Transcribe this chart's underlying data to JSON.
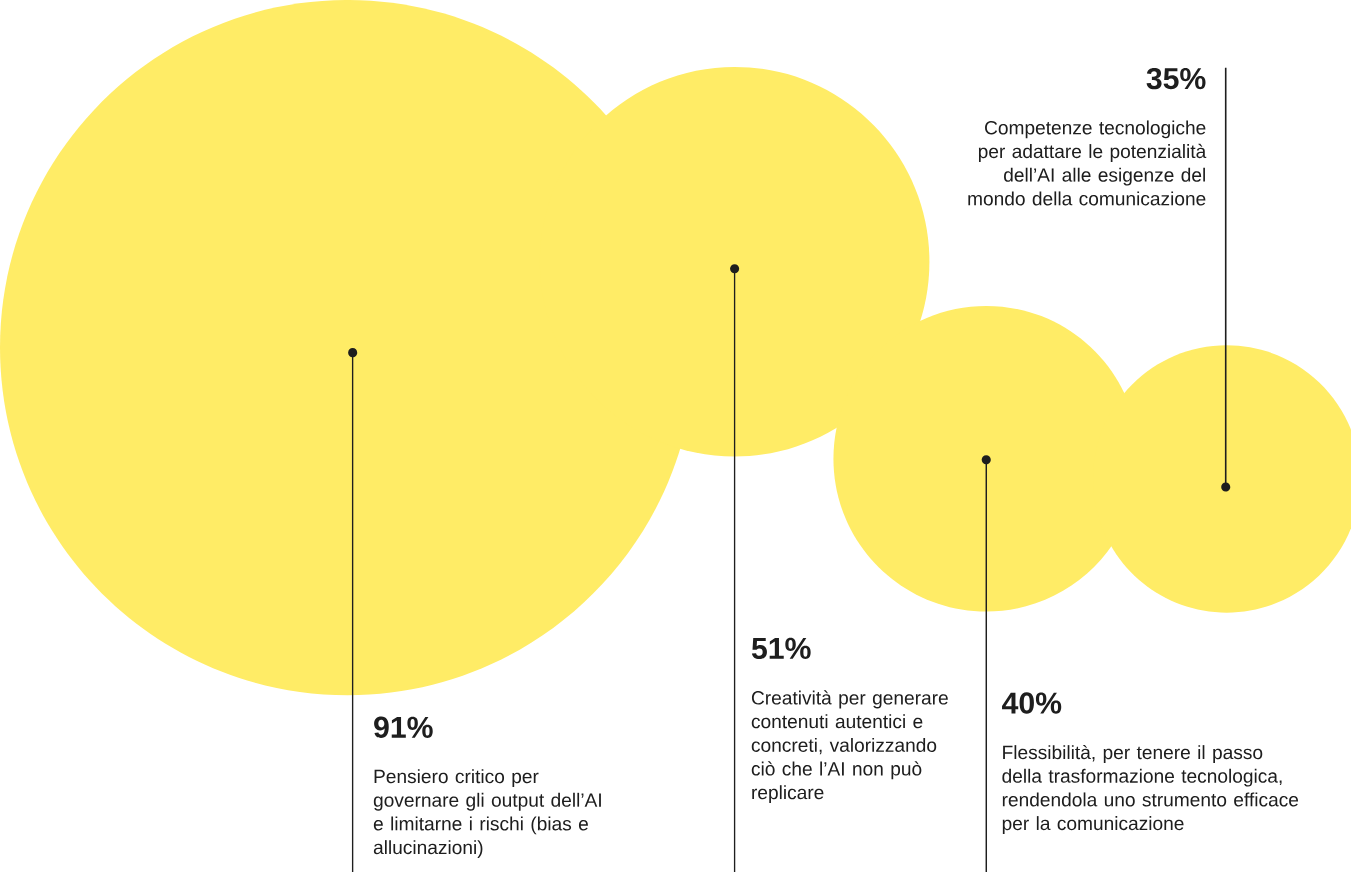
{
  "chart_data": {
    "type": "other",
    "categories": [
      "Pensiero critico per governare gli output dell’AI e limitarne i rischi (bias e allucinazioni)",
      "Creatività per generare contenuti autentici e concreti, valorizzando ciò che l’AI non può replicare",
      "Flessibilità, per tenere il passo della trasformazione tecnologica, rendendola uno strumento efficace per la comunicazione",
      "Competenze tecnologiche per adattare le potenzialità dell’AI alle esigenze del mondo della comunicazione"
    ],
    "values": [
      91,
      51,
      40,
      35
    ],
    "value_labels": [
      "91%",
      "51%",
      "40%",
      "35%"
    ],
    "colors": [
      "#ffec66",
      "#ffec66",
      "#ffec66",
      "#ffec66"
    ]
  }
}
